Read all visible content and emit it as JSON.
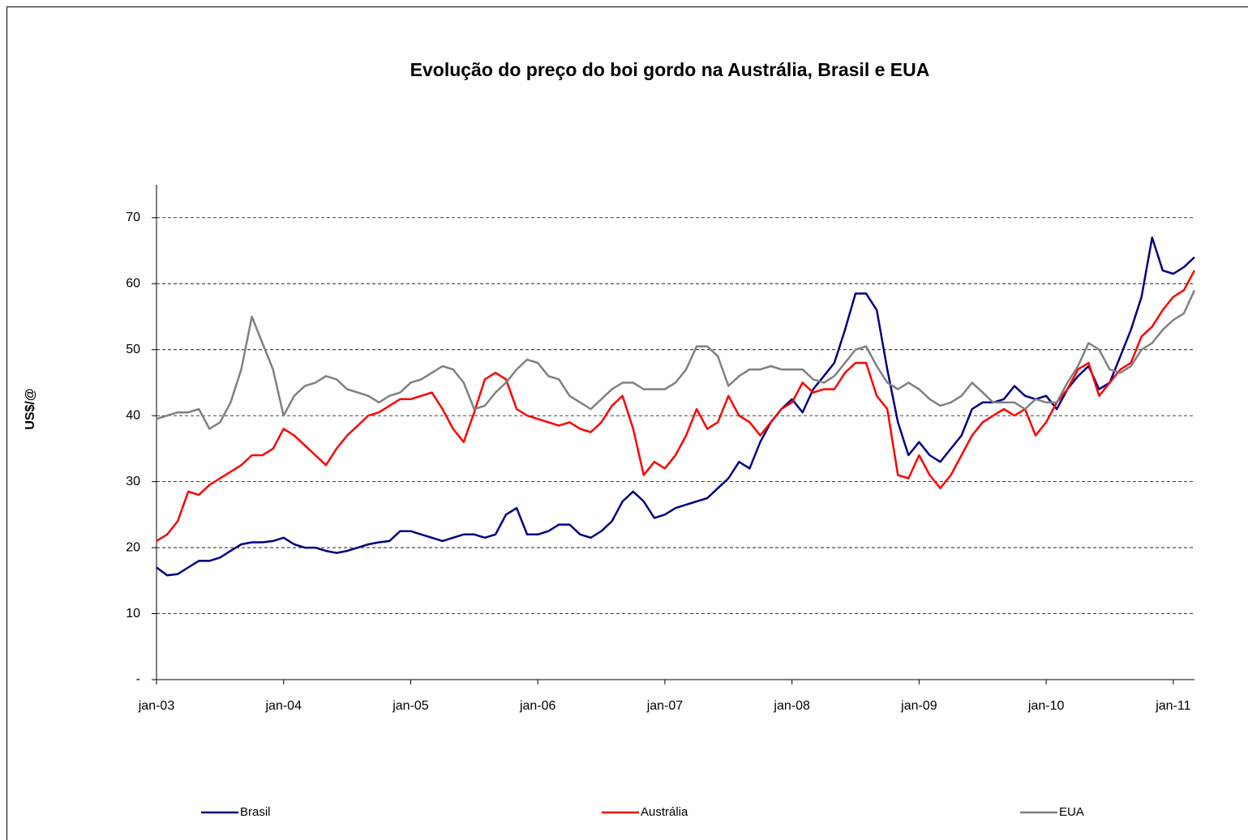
{
  "chart_data": {
    "type": "line",
    "title": "Evolução do preço do boi gordo na Austrália, Brasil e EUA",
    "y_label": "US$/@",
    "categories": [
      "jan-03",
      null,
      null,
      null,
      null,
      null,
      null,
      null,
      null,
      null,
      null,
      null,
      "jan-04",
      null,
      null,
      null,
      null,
      null,
      null,
      null,
      null,
      null,
      null,
      null,
      "jan-05",
      null,
      null,
      null,
      null,
      null,
      null,
      null,
      null,
      null,
      null,
      null,
      "jan-06",
      null,
      null,
      null,
      null,
      null,
      null,
      null,
      null,
      null,
      null,
      null,
      "jan-07",
      null,
      null,
      null,
      null,
      null,
      null,
      null,
      null,
      null,
      null,
      null,
      "jan-08",
      null,
      null,
      null,
      null,
      null,
      null,
      null,
      null,
      null,
      null,
      null,
      "jan-09",
      null,
      null,
      null,
      null,
      null,
      null,
      null,
      null,
      null,
      null,
      null,
      "jan-10",
      null,
      null,
      null,
      null,
      null,
      null,
      null,
      null,
      null,
      null,
      null,
      "jan-11",
      null,
      null
    ],
    "series": [
      {
        "name": "Brasil",
        "color": "#000080",
        "values": [
          17,
          15.8,
          16,
          17,
          18,
          18,
          18.5,
          19.5,
          20.5,
          20.8,
          20.8,
          21,
          21.5,
          20.5,
          20,
          20,
          19.5,
          19.2,
          19.5,
          20,
          20.5,
          20.8,
          21,
          22.5,
          22.5,
          22,
          21.5,
          21,
          21.5,
          22,
          22,
          21.5,
          22,
          25,
          26,
          22,
          22,
          22.5,
          23.5,
          23.5,
          22,
          21.5,
          22.5,
          24,
          27,
          28.5,
          27,
          24.5,
          25,
          26,
          26.5,
          27,
          27.5,
          29,
          30.5,
          33,
          32,
          36,
          39,
          41,
          42.5,
          40.5,
          44,
          46,
          48,
          53,
          58.5,
          58.5,
          56,
          47,
          39,
          34,
          36,
          34,
          33,
          35,
          37,
          41,
          42,
          42,
          42.5,
          44.5,
          43,
          42.5,
          43,
          41,
          44,
          46,
          47.5,
          44,
          45,
          49,
          53,
          58,
          67,
          62,
          61.5,
          62.5,
          64
        ]
      },
      {
        "name": "Austrália",
        "color": "#ff0000",
        "values": [
          21,
          22,
          24,
          28.5,
          28,
          29.5,
          30.5,
          31.5,
          32.5,
          34,
          34,
          35,
          38,
          37,
          35.5,
          34,
          32.5,
          35,
          37,
          38.5,
          40,
          40.5,
          41.5,
          42.5,
          42.5,
          43,
          43.5,
          41,
          38,
          36,
          40.5,
          45.5,
          46.5,
          45.5,
          41,
          40,
          39.5,
          39,
          38.5,
          39,
          38,
          37.5,
          39,
          41.5,
          43,
          38,
          31,
          33,
          32,
          34,
          37,
          41,
          38,
          39,
          43,
          40,
          39,
          37,
          39,
          41,
          42,
          45,
          43.5,
          44,
          44,
          46.5,
          48,
          48,
          43,
          41,
          31,
          30.5,
          34,
          31,
          29,
          31,
          34,
          37,
          39,
          40,
          41,
          40,
          41,
          37,
          39,
          42,
          44,
          47,
          48,
          43,
          45,
          47,
          48,
          52,
          53.5,
          56,
          58,
          59,
          62
        ]
      },
      {
        "name": "EUA",
        "color": "#808080",
        "values": [
          39.5,
          40,
          40.5,
          40.5,
          41,
          38,
          39,
          42,
          47,
          55,
          51,
          47,
          40,
          43,
          44.5,
          45,
          46,
          45.5,
          44,
          43.5,
          43,
          42,
          43,
          43.5,
          45,
          45.5,
          46.5,
          47.5,
          47,
          45,
          41,
          41.5,
          43.5,
          45,
          47,
          48.5,
          48,
          46,
          45.5,
          43,
          42,
          41,
          42.5,
          44,
          45,
          45,
          44,
          44,
          44,
          45,
          47,
          50.5,
          50.5,
          49,
          44.5,
          46,
          47,
          47,
          47.5,
          47,
          47,
          47,
          45.5,
          45,
          46,
          48,
          50,
          50.5,
          47.5,
          45,
          44,
          45,
          44,
          42.5,
          41.5,
          42,
          43,
          45,
          43.5,
          42,
          42,
          42,
          41,
          42.5,
          42,
          42,
          45,
          47.5,
          51,
          50,
          47,
          46.5,
          47.5,
          50,
          51,
          53,
          54.5,
          55.5,
          59
        ]
      }
    ],
    "ylim": [
      0,
      75
    ],
    "yticks": [
      {
        "value": 0,
        "label": "-"
      },
      10,
      20,
      30,
      40,
      50,
      60,
      70
    ],
    "grid": true,
    "legend": "bottom"
  }
}
